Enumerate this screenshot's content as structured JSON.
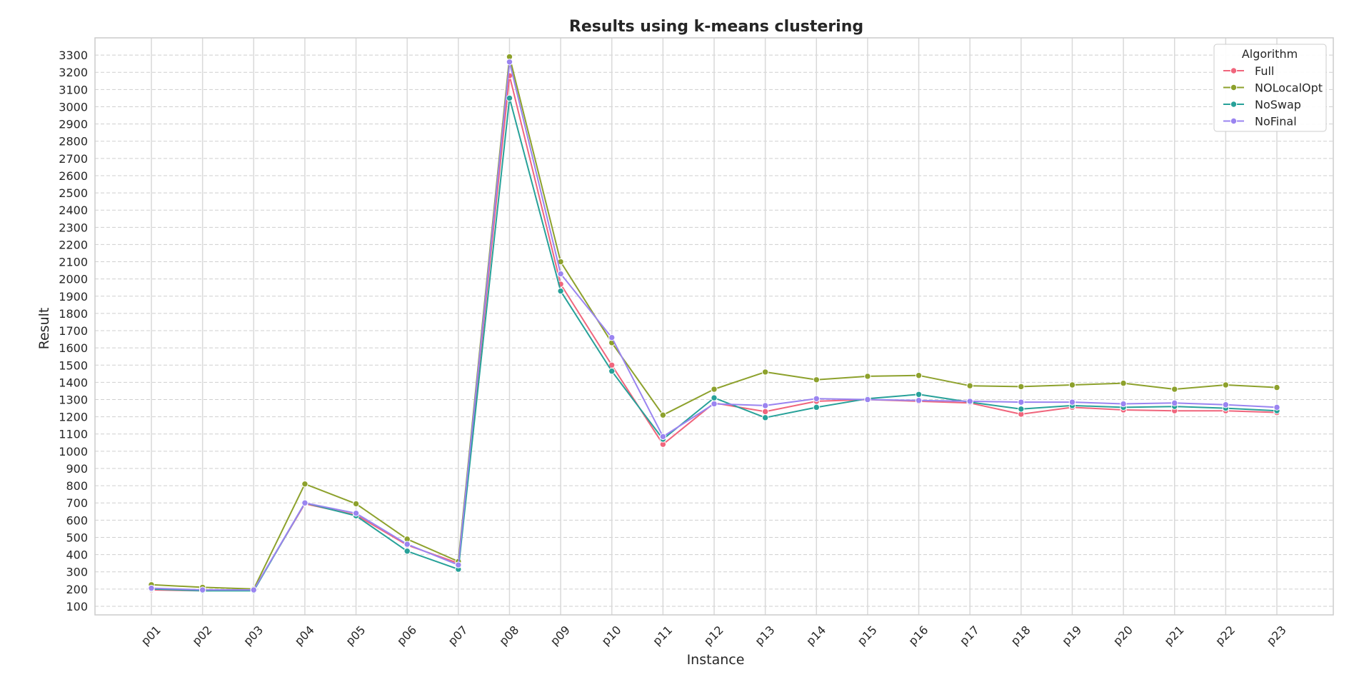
{
  "chart_data": {
    "type": "line",
    "title": "Results using k-means clustering",
    "xlabel": "Instance",
    "ylabel": "Result",
    "categories": [
      "p01",
      "p02",
      "p03",
      "p04",
      "p05",
      "p06",
      "p07",
      "p08",
      "p09",
      "p10",
      "p11",
      "p12",
      "p13",
      "p14",
      "p15",
      "p16",
      "p17",
      "p18",
      "p19",
      "p20",
      "p21",
      "p22",
      "p23"
    ],
    "ylim": [
      50,
      3400
    ],
    "yticks": [
      100,
      200,
      300,
      400,
      500,
      600,
      700,
      800,
      900,
      1000,
      1100,
      1200,
      1300,
      1400,
      1500,
      1600,
      1700,
      1800,
      1900,
      2000,
      2100,
      2200,
      2300,
      2400,
      2500,
      2600,
      2700,
      2800,
      2900,
      3000,
      3100,
      3200,
      3300
    ],
    "grid": true,
    "legend": {
      "title": "Algorithm",
      "placement": "top-right"
    },
    "series": [
      {
        "name": "Full",
        "color": "#f0657c",
        "values": [
          195,
          190,
          195,
          695,
          630,
          455,
          350,
          3180,
          1970,
          1500,
          1040,
          1280,
          1230,
          1290,
          1300,
          1290,
          1280,
          1215,
          1255,
          1240,
          1235,
          1235,
          1225
        ]
      },
      {
        "name": "NOLocalOpt",
        "color": "#8da12c",
        "values": [
          225,
          210,
          200,
          810,
          695,
          490,
          360,
          3290,
          2100,
          1630,
          1210,
          1360,
          1460,
          1415,
          1435,
          1440,
          1380,
          1375,
          1385,
          1395,
          1360,
          1385,
          1370
        ]
      },
      {
        "name": "NoSwap",
        "color": "#27a199",
        "values": [
          200,
          190,
          190,
          700,
          625,
          420,
          315,
          3050,
          1930,
          1465,
          1070,
          1310,
          1195,
          1255,
          1305,
          1330,
          1285,
          1245,
          1265,
          1255,
          1260,
          1250,
          1235
        ]
      },
      {
        "name": "NoFinal",
        "color": "#9a84f0",
        "values": [
          205,
          195,
          195,
          700,
          640,
          460,
          340,
          3260,
          2030,
          1660,
          1085,
          1275,
          1265,
          1305,
          1300,
          1295,
          1290,
          1285,
          1285,
          1275,
          1280,
          1270,
          1255
        ]
      }
    ]
  }
}
